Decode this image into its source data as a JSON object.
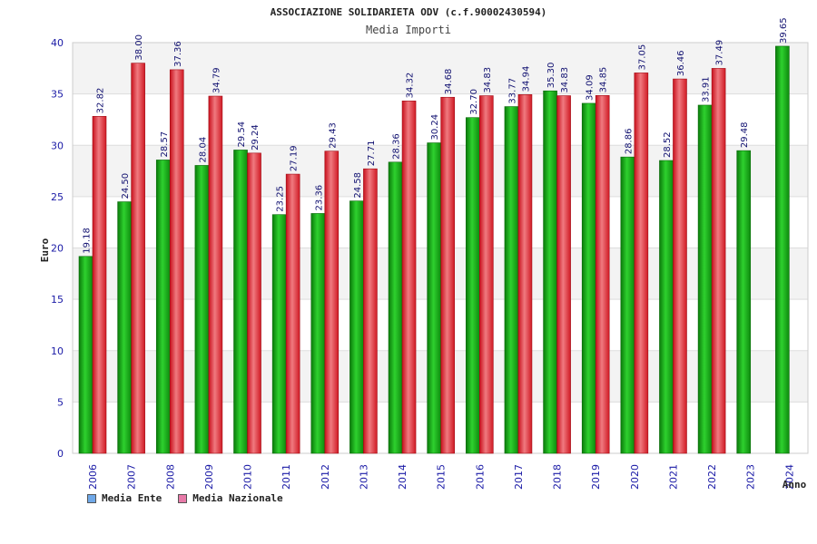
{
  "chart_data": {
    "type": "bar",
    "title": "ASSOCIAZIONE SOLIDARIETA ODV (c.f.90002430594)",
    "subtitle": "Media Importi",
    "xlabel": "Anno",
    "ylabel": "Euro",
    "ylim": [
      0,
      40
    ],
    "yticks": [
      0,
      5,
      10,
      15,
      20,
      25,
      30,
      35,
      40
    ],
    "grid": true,
    "legend_position": "bottom-left",
    "categories": [
      "2006",
      "2007",
      "2008",
      "2009",
      "2010",
      "2011",
      "2012",
      "2013",
      "2014",
      "2015",
      "2016",
      "2017",
      "2018",
      "2019",
      "2020",
      "2021",
      "2022",
      "2023",
      "2024"
    ],
    "series": [
      {
        "name": "Media Ente",
        "color": "#1aa01a",
        "legend_color": "#6fa8e8",
        "values": [
          19.18,
          24.5,
          28.57,
          28.04,
          29.54,
          23.25,
          23.36,
          24.58,
          28.36,
          30.24,
          32.7,
          33.77,
          35.3,
          34.09,
          28.86,
          28.52,
          33.91,
          29.48,
          39.65
        ],
        "labels": [
          "19.18",
          "24.50",
          "28.57",
          "28.04",
          "29.54",
          "23.25",
          "23.36",
          "24.58",
          "28.36",
          "30.24",
          "32.70",
          "33.77",
          "35.30",
          "34.09",
          "28.86",
          "28.52",
          "33.91",
          "29.48",
          "39.65"
        ]
      },
      {
        "name": "Media Nazionale",
        "color": "#e0202a",
        "legend_color": "#e87aa8",
        "values": [
          32.82,
          38.0,
          37.36,
          34.79,
          29.24,
          27.19,
          29.43,
          27.71,
          34.32,
          34.68,
          34.83,
          34.94,
          34.83,
          34.85,
          37.05,
          36.46,
          37.49,
          null,
          null
        ],
        "labels": [
          "32.82",
          "38.00",
          "37.36",
          "34.79",
          "29.24",
          "27.19",
          "29.43",
          "27.71",
          "34.32",
          "34.68",
          "34.83",
          "34.94",
          "34.83",
          "34.85",
          "37.05",
          "36.46",
          "37.49",
          null,
          null
        ]
      }
    ]
  }
}
